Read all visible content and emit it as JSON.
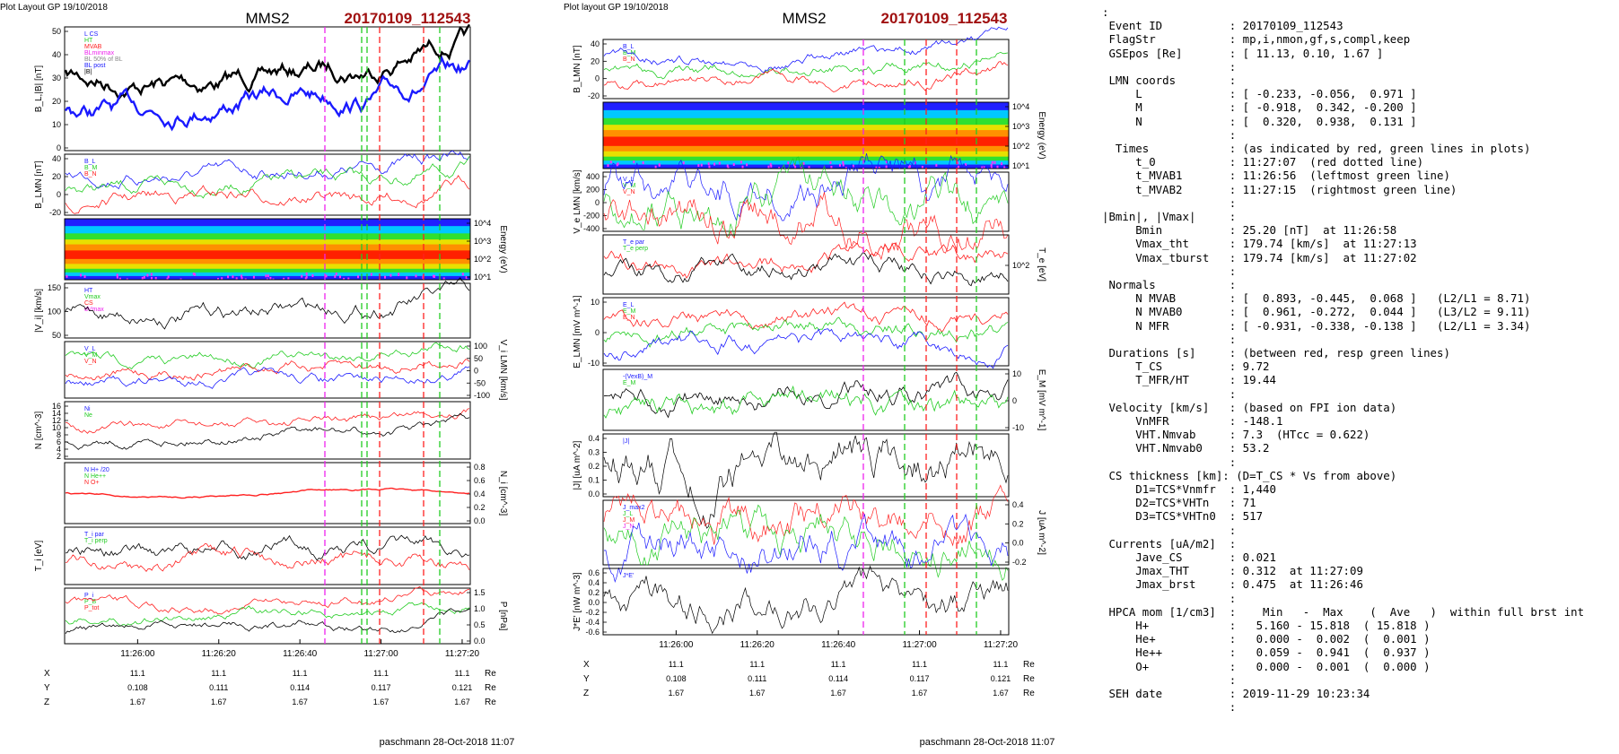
{
  "left_plot": {
    "layout_label": "Plot Layout GP 19/10/2018",
    "spacecraft": "MMS2",
    "event_label": "20170109_112543",
    "footer": "paschmann 28-Oct-2018 11:07",
    "time_ticks": [
      "11:26:00",
      "11:26:20",
      "11:26:40",
      "11:27:00",
      "11:27:20"
    ],
    "pos_rows": [
      {
        "label": "X",
        "values": [
          "11.1",
          "11.1",
          "11.1",
          "11.1",
          "11.1"
        ],
        "unit": "Re"
      },
      {
        "label": "Y",
        "values": [
          "0.108",
          "0.111",
          "0.114",
          "0.117",
          "0.121"
        ],
        "unit": "Re"
      },
      {
        "label": "Z",
        "values": [
          "1.67",
          "1.67",
          "1.67",
          "1.67",
          "1.67"
        ],
        "unit": "Re"
      }
    ],
    "panels": [
      {
        "ylabel": "B_L,|B| [nT]",
        "yticks": [
          "0",
          "10",
          "20",
          "30",
          "40",
          "50"
        ],
        "legend": [
          "L CS",
          "HT",
          "MVAB",
          "BLminmax",
          "BL 50% of BL",
          "BL post",
          "|B|"
        ]
      },
      {
        "ylabel": "B_LMN [nT]",
        "yticks": [
          "-20",
          "0",
          "20",
          "40"
        ],
        "legend": [
          "B_L",
          "B_M",
          "B_N"
        ]
      },
      {
        "ylabel": "Energy (eV)",
        "yticks": [
          "10^1",
          "10^2",
          "10^3",
          "10^4"
        ],
        "legend": []
      },
      {
        "ylabel": "|V_i| [km/s]",
        "yticks": [
          "50",
          "100",
          "150"
        ],
        "legend": [
          "HT",
          "Vmax",
          "CS",
          "dVmax"
        ]
      },
      {
        "ylabel": "V_i LMN [km/s]",
        "yticks": [
          "-100",
          "-50",
          "0",
          "50",
          "100"
        ],
        "legend": [
          "V_L",
          "V_M",
          "V_N"
        ]
      },
      {
        "ylabel": "N [cm^-3]",
        "yticks": [
          "2",
          "4",
          "6",
          "8",
          "10",
          "12",
          "14",
          "16"
        ],
        "legend": [
          "Ni",
          "Ne"
        ]
      },
      {
        "ylabel": "N_i [cm^-3]",
        "yticks": [
          "0.0",
          "0.2",
          "0.4",
          "0.6",
          "0.8"
        ],
        "legend": [
          "N H+ /20",
          "N He++",
          "N O+"
        ]
      },
      {
        "ylabel": "T_i [eV]",
        "yticks": [],
        "legend": [
          "T_i par",
          "T_i perp"
        ]
      },
      {
        "ylabel": "P [nPa]",
        "yticks": [
          "0.0",
          "0.5",
          "1.0",
          "1.5"
        ],
        "legend": [
          "P_i",
          "P_B",
          "P_tot"
        ]
      }
    ]
  },
  "right_plot": {
    "layout_label": "Plot layout GP 19/10/2018",
    "spacecraft": "MMS2",
    "event_label": "20170109_112543",
    "footer": "paschmann 28-Oct-2018 11:07",
    "time_ticks": [
      "11:26:00",
      "11:26:20",
      "11:26:40",
      "11:27:00",
      "11:27:20"
    ],
    "pos_rows": [
      {
        "label": "X",
        "values": [
          "11.1",
          "11.1",
          "11.1",
          "11.1",
          "11.1"
        ],
        "unit": "Re"
      },
      {
        "label": "Y",
        "values": [
          "0.108",
          "0.111",
          "0.114",
          "0.117",
          "0.121"
        ],
        "unit": "Re"
      },
      {
        "label": "Z",
        "values": [
          "1.67",
          "1.67",
          "1.67",
          "1.67",
          "1.67"
        ],
        "unit": "Re"
      }
    ],
    "panels": [
      {
        "ylabel": "B_LMN [nT]",
        "yticks": [
          "-20",
          "0",
          "20",
          "40"
        ],
        "legend": [
          "B_L",
          "B_M",
          "B_N"
        ]
      },
      {
        "ylabel": "Energy (eV)",
        "yticks": [
          "10^1",
          "10^2",
          "10^3",
          "10^4"
        ],
        "legend": []
      },
      {
        "ylabel": "V_e LMN [km/s]",
        "yticks": [
          "-400",
          "-200",
          "0",
          "200",
          "400"
        ],
        "legend": [
          "V_L",
          "V_M",
          "V_N"
        ]
      },
      {
        "ylabel": "T_e [eV]",
        "yticks": [
          "10^2"
        ],
        "legend": [
          "T_e par",
          "T_e perp"
        ]
      },
      {
        "ylabel": "E_LMN [mV m^-1]",
        "yticks": [
          "-10",
          "0",
          "10"
        ],
        "legend": [
          "E_L",
          "E_M",
          "E_N"
        ]
      },
      {
        "ylabel": "E_M [mV m^-1]",
        "yticks": [
          "-10",
          "0",
          "10"
        ],
        "legend": [
          "-(VexB)_M",
          "E_M"
        ]
      },
      {
        "ylabel": "|J| [uA m^-2]",
        "yticks": [
          "0.0",
          "0.1",
          "0.2",
          "0.3",
          "0.4"
        ],
        "legend": [
          "|J|"
        ]
      },
      {
        "ylabel": "J [uA m^-2]",
        "yticks": [
          "-0.2",
          "0.0",
          "0.2",
          "0.4"
        ],
        "legend": [
          "J_max2",
          "J_L",
          "J_M",
          "J_N"
        ]
      },
      {
        "ylabel": "J*E' [nW m^-3]",
        "yticks": [
          "-0.6",
          "-0.4",
          "-0.2",
          "0.0",
          "0.2",
          "0.4",
          "0.6"
        ],
        "legend": [
          "J*E'"
        ]
      }
    ]
  },
  "summary_lines": [
    ":",
    " Event ID          : 20170109_112543",
    " FlagStr           : mp,i,nmon,gf,s,compl,keep",
    " GSEpos [Re]       : [ 11.13, 0.10, 1.67 ]",
    "                   :",
    " LMN coords        :",
    "     L             : [ -0.233, -0.056,  0.971 ]",
    "     M             : [ -0.918,  0.342, -0.200 ]",
    "     N             : [  0.320,  0.938,  0.131 ]",
    "                   :",
    "  Times            : (as indicated by red, green lines in plots)",
    "     t_0           : 11:27:07  (red dotted line)",
    "     t_MVAB1       : 11:26:56  (leftmost green line)",
    "     t_MVAB2       : 11:27:15  (rightmost green line)",
    "                   :",
    "|Bmin|, |Vmax|     :",
    "     Bmin          : 25.20 [nT]  at 11:26:58",
    "     Vmax_tht      : 179.74 [km/s]  at 11:27:13",
    "     Vmax_tburst   : 179.74 [km/s]  at 11:27:02",
    "                   :",
    " Normals           :",
    "     N MVAB        : [  0.893, -0.445,  0.068 ]   (L2/L1 = 8.71)",
    "     N MVAB0       : [  0.961, -0.272,  0.044 ]   (L3/L2 = 9.11)",
    "     N MFR         : [ -0.931, -0.338, -0.138 ]   (L2/L1 = 3.34)",
    "                   :",
    " Durations [s]     : (between red, resp green lines)",
    "     T_CS          : 9.72",
    "     T_MFR/HT      : 19.44",
    "                   :",
    " Velocity [km/s]   : (based on FPI ion data)",
    "     VnMFR         : -148.1",
    "     VHT.Nmvab     : 7.3  (HTcc = 0.622)",
    "     VHT.Nmvab0    : 53.2",
    "                   :",
    " CS thickness [km]: (D=T_CS * Vs from above)",
    "     D1=TCS*Vnmfr  : 1,440",
    "     D2=TCS*VHTn   : 71",
    "     D3=TCS*VHTn0  : 517",
    "                   :",
    " Currents [uA/m2]  :",
    "     Jave_CS       : 0.021",
    "     Jmax_THT      : 0.312  at 11:27:09",
    "     Jmax_brst     : 0.475  at 11:26:46",
    "                   :",
    " HPCA mom [1/cm3]  :    Min   -  Max    (  Ave   )  within full brst int",
    "     H+            :   5.160 - 15.818  ( 15.818 )",
    "     He+           :   0.000 -  0.002  (  0.001 )",
    "     He++          :   0.059 -  0.941  (  0.937 )",
    "     O+            :   0.000 -  0.001  (  0.000 )",
    "                   :",
    " SEH date          : 2019-11-29 10:23:34",
    "                   :"
  ],
  "colors": {
    "blue": "#1a1aff",
    "green": "#22cc22",
    "red": "#ff2020",
    "magenta": "#ee22ee",
    "black": "#000000",
    "title_red": "#a01010",
    "grey": "#888888"
  }
}
